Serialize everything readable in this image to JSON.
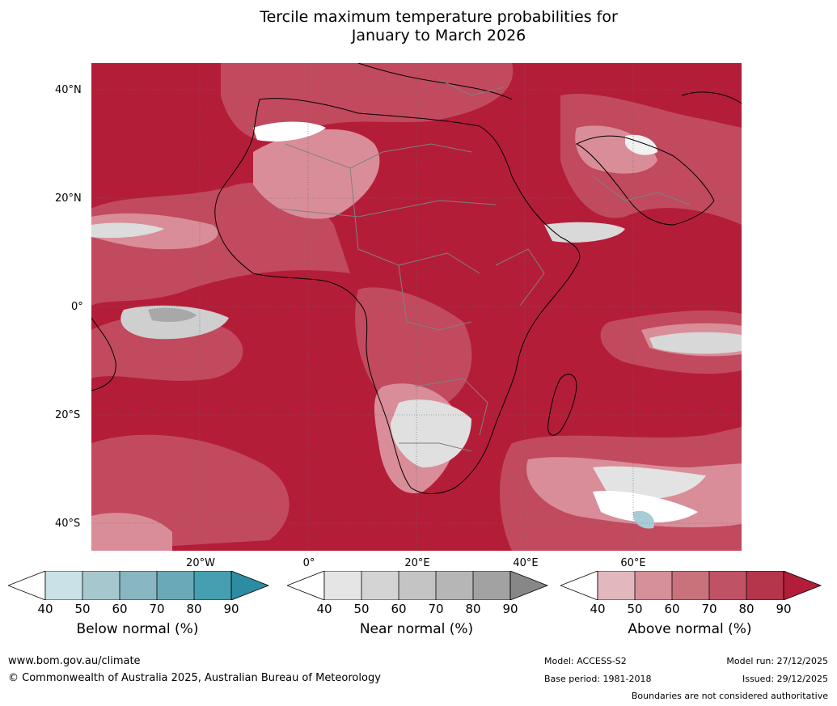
{
  "title": {
    "line1": "Tercile maximum temperature probabilities for",
    "line2": "January to March 2026"
  },
  "map": {
    "latitude_labels": [
      "40°N",
      "20°N",
      "0°",
      "20°S",
      "40°S"
    ],
    "longitude_labels": [
      "20°W",
      "0°",
      "20°E",
      "40°E",
      "60°E"
    ],
    "region": "Africa and Middle East",
    "colors": {
      "dominant_above": "#b41d38",
      "coast": "#000000",
      "borders": "#808080"
    }
  },
  "colorbars": [
    {
      "label": "Below normal (%)",
      "ticks": [
        "40",
        "50",
        "60",
        "70",
        "80",
        "90"
      ],
      "colors": [
        "#ffffff",
        "#c9e1e7",
        "#a6c7cd",
        "#88b6c1",
        "#6aaab8",
        "#469fb0",
        "#2b8ca2"
      ]
    },
    {
      "label": "Near normal (%)",
      "ticks": [
        "40",
        "50",
        "60",
        "70",
        "80",
        "90"
      ],
      "colors": [
        "#ffffff",
        "#e5e5e5",
        "#d4d4d4",
        "#c4c4c4",
        "#b6b6b6",
        "#a2a2a2",
        "#878787"
      ]
    },
    {
      "label": "Above normal (%)",
      "ticks": [
        "40",
        "50",
        "60",
        "70",
        "80",
        "90"
      ],
      "colors": [
        "#ffffff",
        "#e3b7be",
        "#d59099",
        "#c9727c",
        "#bf5365",
        "#b5364b",
        "#b41d38"
      ]
    }
  ],
  "footer": {
    "website": "www.bom.gov.au/climate",
    "copyright": "© Commonwealth of Australia 2025, Australian Bureau of Meteorology",
    "model": "Model: ACCESS-S2",
    "base_period": "Base period: 1981-2018",
    "model_run": "Model run: 27/12/2025",
    "issued": "Issued: 29/12/2025",
    "disclaimer": "Boundaries are not considered authoritative"
  }
}
